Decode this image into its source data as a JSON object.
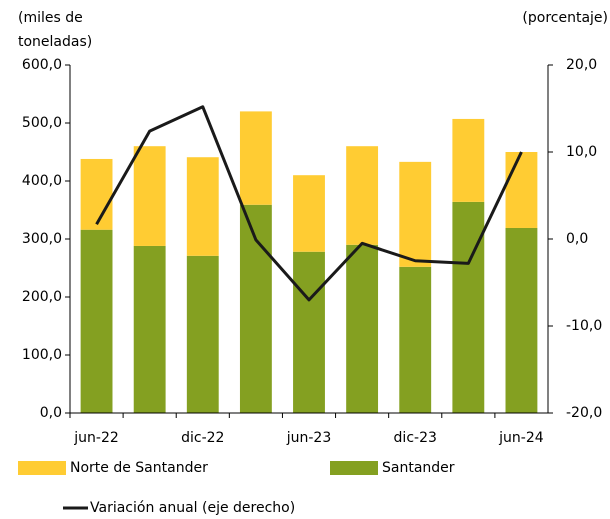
{
  "chart_data": {
    "type": "bar",
    "y_label": [
      "(miles de",
      "toneladas)"
    ],
    "y2_label": "(porcentaje)",
    "categories": [
      "jun-22",
      null,
      "dic-22",
      null,
      "jun-23",
      null,
      "dic-23",
      null,
      "jun-24"
    ],
    "stacked": true,
    "series": [
      {
        "name": "Norte de Santander",
        "color": "#ffcc33",
        "values": [
          122,
          172,
          170,
          161,
          132,
          170,
          181,
          143,
          131
        ]
      },
      {
        "name": "Santander",
        "color": "#84a021",
        "values": [
          316,
          288,
          271,
          359,
          278,
          290,
          252,
          364,
          319
        ]
      },
      {
        "name": "Variación anual (eje derecho)",
        "type": "line",
        "axis": "y2",
        "color": "#1a1a1a",
        "values": [
          1.7,
          12.4,
          15.2,
          -0.1,
          -7.0,
          -0.5,
          -2.5,
          -2.8,
          10.0
        ]
      }
    ],
    "ylim": [
      0,
      600
    ],
    "yticks": [
      {
        "value": 0,
        "label": "0,0"
      },
      {
        "value": 100,
        "label": "100,0"
      },
      {
        "value": 200,
        "label": "200,0"
      },
      {
        "value": 300,
        "label": "300,0"
      },
      {
        "value": 400,
        "label": "400,0"
      },
      {
        "value": 500,
        "label": "500,0"
      },
      {
        "value": 600,
        "label": "600,0"
      }
    ],
    "y2lim": [
      -20,
      20
    ],
    "y2ticks": [
      {
        "value": -20,
        "label": "-20,0"
      },
      {
        "value": -10,
        "label": "-10,0"
      },
      {
        "value": 0,
        "label": "0,0"
      },
      {
        "value": 10,
        "label": "10,0"
      },
      {
        "value": 20,
        "label": "20,0"
      }
    ],
    "grid": false,
    "legend": "bottom"
  }
}
